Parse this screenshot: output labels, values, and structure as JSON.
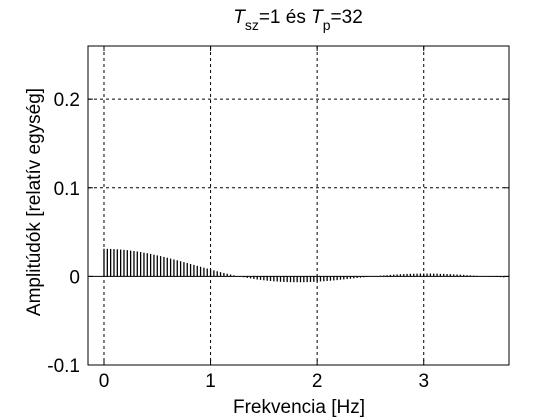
{
  "chart_data": {
    "type": "bar",
    "title": {
      "T1": "T",
      "sub1": "sz",
      "mid": "=1 és  ",
      "T2": "T",
      "sub2": "p",
      "end": "=32"
    },
    "xlabel": "Frekvencia [Hz]",
    "ylabel": "Amplitúdók [relatív egység]",
    "xlim": [
      -0.15,
      3.8
    ],
    "ylim": [
      -0.1,
      0.26
    ],
    "xticks": [
      0,
      1,
      2,
      3
    ],
    "xtick_labels": [
      "0",
      "1",
      "2",
      "3"
    ],
    "yticks": [
      -0.1,
      0,
      0.1,
      0.2
    ],
    "ytick_labels": [
      "-0.1",
      "0",
      "0.1",
      "0.2"
    ],
    "grid": true,
    "frequency_step": 0.03125,
    "frequency_start": 0,
    "frequency_end": 3.75,
    "series": [
      {
        "values": [
          0.0312,
          0.0311,
          0.031,
          0.0308,
          0.0306,
          0.0303,
          0.03,
          0.0296,
          0.0291,
          0.0286,
          0.0281,
          0.0275,
          0.0268,
          0.0261,
          0.0253,
          0.0245,
          0.0237,
          0.0229,
          0.022,
          0.0211,
          0.0201,
          0.0191,
          0.0181,
          0.0171,
          0.0161,
          0.0151,
          0.014,
          0.013,
          0.0119,
          0.0109,
          0.0098,
          0.0088,
          0.0078,
          0.0068,
          0.0058,
          0.0048,
          0.0039,
          0.003,
          0.0021,
          0.0012,
          0.0004,
          -0.0003,
          -0.001,
          -0.0017,
          -0.0023,
          -0.0029,
          -0.0035,
          -0.004,
          -0.0044,
          -0.0049,
          -0.0052,
          -0.0056,
          -0.0058,
          -0.0061,
          -0.0063,
          -0.0064,
          -0.0065,
          -0.0066,
          -0.0066,
          -0.0066,
          -0.0066,
          -0.0065,
          -0.0063,
          -0.0062,
          -0.006,
          -0.0057,
          -0.0055,
          -0.0052,
          -0.0049,
          -0.0046,
          -0.0042,
          -0.0038,
          -0.0034,
          -0.003,
          -0.0026,
          -0.0022,
          -0.0018,
          -0.0014,
          -0.001,
          -0.0006,
          -0.0002,
          0.0001,
          0.0005,
          0.0008,
          0.0011,
          0.0014,
          0.0017,
          0.002,
          0.0022,
          0.0024,
          0.0026,
          0.0028,
          0.0029,
          0.003,
          0.0031,
          0.0032,
          0.0032,
          0.0032,
          0.0032,
          0.0031,
          0.0031,
          0.0029,
          0.0028,
          0.0027,
          0.0025,
          0.0023,
          0.0021,
          0.0019,
          0.0017,
          0.0014,
          0.0012,
          0.0009,
          0.0007,
          0.0004,
          0.0002,
          -0.0001,
          -0.0003,
          -0.0005,
          -0.0007,
          -0.0009,
          -0.0011
        ]
      }
    ]
  }
}
